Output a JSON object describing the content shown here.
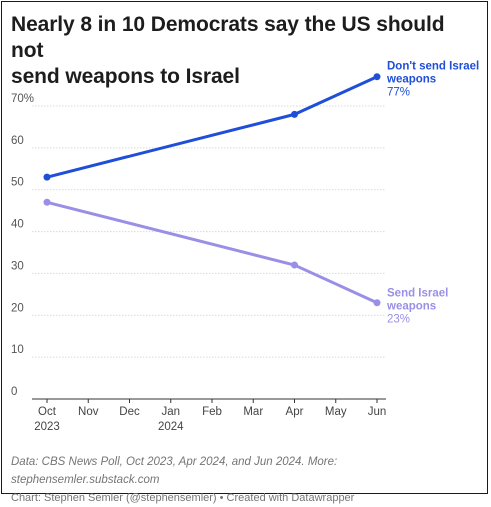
{
  "title_lines": [
    "Nearly 8 in 10 Democrats say the US should not",
    "send weapons to Israel"
  ],
  "notes": {
    "source": "Data: CBS News Poll, Oct 2023, Apr 2024, and Jun 2024. More: stephensemler.substack.com",
    "credit": "Chart: Stephen Semler (@stephensemler) • Created with Datawrapper"
  },
  "chart_data": {
    "type": "line",
    "title": "Nearly 8 in 10 Democrats say the US should not send weapons to Israel",
    "x_ticks": [
      "Oct",
      "Nov",
      "Dec",
      "Jan",
      "Feb",
      "Mar",
      "Apr",
      "May",
      "Jun"
    ],
    "x_tick_years": {
      "Oct": "2023",
      "Jan": "2024"
    },
    "y_ticks": [
      "0",
      "10",
      "20",
      "30",
      "40",
      "50",
      "60",
      "70%"
    ],
    "ylim": [
      0,
      70
    ],
    "grid": true,
    "series": [
      {
        "name": "Don't send Israel weapons",
        "label_lines": [
          "Don't send Israel",
          "weapons"
        ],
        "end_label": "77%",
        "color": "#1f4ed8",
        "points": [
          {
            "x": "Oct 2023",
            "y": 53
          },
          {
            "x": "Apr 2024",
            "y": 68
          },
          {
            "x": "Jun 2024",
            "y": 77
          }
        ]
      },
      {
        "name": "Send Israel weapons",
        "label_lines": [
          "Send Israel",
          "weapons"
        ],
        "end_label": "23%",
        "color": "#9a8fe6",
        "points": [
          {
            "x": "Oct 2023",
            "y": 47
          },
          {
            "x": "Apr 2024",
            "y": 32
          },
          {
            "x": "Jun 2024",
            "y": 23
          }
        ]
      }
    ]
  }
}
